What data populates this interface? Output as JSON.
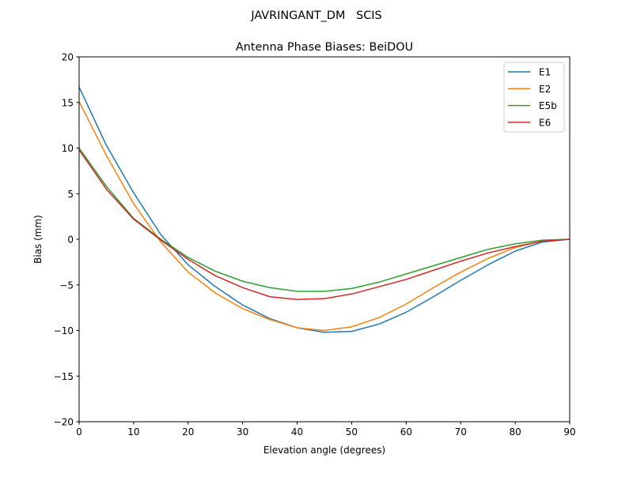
{
  "chart_data": {
    "type": "line",
    "suptitle": "JAVRINGANT_DM   SCIS",
    "title": "Antenna Phase Biases: BeiDOU",
    "xlabel": "Elevation angle (degrees)",
    "ylabel": "Bias (mm)",
    "xlim": [
      0,
      90
    ],
    "ylim": [
      -20,
      20
    ],
    "xticks": [
      0,
      10,
      20,
      30,
      40,
      50,
      60,
      70,
      80,
      90
    ],
    "yticks": [
      -20,
      -15,
      -10,
      -5,
      0,
      5,
      10,
      15,
      20
    ],
    "grid": false,
    "legend_position": "top-right",
    "x": [
      0,
      5,
      10,
      15,
      20,
      25,
      30,
      35,
      40,
      45,
      50,
      55,
      60,
      65,
      70,
      75,
      80,
      85,
      90
    ],
    "series": [
      {
        "name": "E1",
        "color": "#1f77b4",
        "values": [
          16.7,
          10.3,
          5.1,
          0.5,
          -2.8,
          -5.2,
          -7.2,
          -8.7,
          -9.7,
          -10.2,
          -10.1,
          -9.3,
          -8.0,
          -6.3,
          -4.5,
          -2.8,
          -1.3,
          -0.3,
          0.0
        ]
      },
      {
        "name": "E2",
        "color": "#ff7f0e",
        "values": [
          15.1,
          9.2,
          3.9,
          -0.3,
          -3.6,
          -5.9,
          -7.6,
          -8.8,
          -9.7,
          -10.0,
          -9.6,
          -8.6,
          -7.1,
          -5.3,
          -3.6,
          -2.1,
          -0.9,
          -0.2,
          0.0
        ]
      },
      {
        "name": "E5b",
        "color": "#2ca02c",
        "values": [
          10.0,
          5.8,
          2.3,
          0.0,
          -2.0,
          -3.5,
          -4.6,
          -5.3,
          -5.7,
          -5.7,
          -5.4,
          -4.7,
          -3.8,
          -2.9,
          -2.0,
          -1.1,
          -0.5,
          -0.1,
          0.0
        ]
      },
      {
        "name": "E6",
        "color": "#d62728",
        "values": [
          9.8,
          5.5,
          2.2,
          -0.1,
          -2.2,
          -4.0,
          -5.3,
          -6.3,
          -6.6,
          -6.5,
          -6.0,
          -5.2,
          -4.4,
          -3.4,
          -2.4,
          -1.5,
          -0.8,
          -0.2,
          0.0
        ]
      }
    ]
  }
}
